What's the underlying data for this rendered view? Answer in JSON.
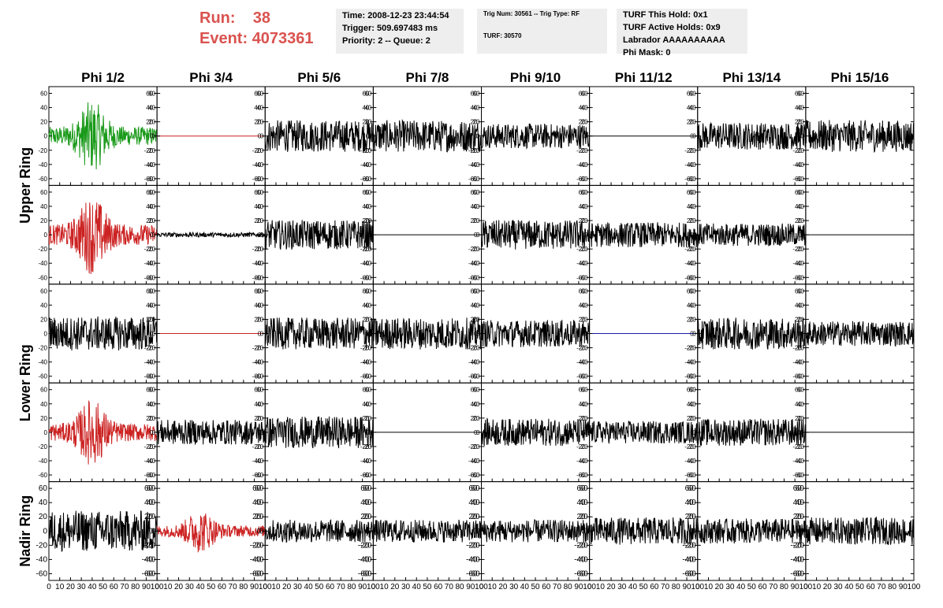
{
  "header": {
    "run_label": "Run:",
    "run_value": "38",
    "event_label": "Event:",
    "event_value": "4073361",
    "time": "Time: 2008-12-23 23:44:54",
    "trigger": "Trigger: 509.697483 ms",
    "priority": "Priority: 2 -- Queue: 2",
    "trig_num": "Trig Num: 30561 -- Trig Type: RF",
    "turf": "TURF: 30570",
    "turf_this_hold": "TURF This Hold: 0x1",
    "turf_active_holds": "TURF Active Holds: 0x9",
    "labrador": "Labrador AAAAAAAAAA",
    "phi_mask": "Phi Mask: 0"
  },
  "chart_data": {
    "type": "line",
    "grid": "8 columns x 5 rows of waveform panels",
    "columns": [
      "Phi 1/2",
      "Phi 3/4",
      "Phi 5/6",
      "Phi 7/8",
      "Phi 9/10",
      "Phi 11/12",
      "Phi 13/14",
      "Phi 15/16"
    ],
    "row_groups": [
      {
        "label": "Upper Ring",
        "rows": [
          0,
          1
        ]
      },
      {
        "label": "Lower Ring",
        "rows": [
          2,
          3
        ]
      },
      {
        "label": "Nadir Ring",
        "rows": [
          4
        ]
      }
    ],
    "xlim": [
      0,
      100
    ],
    "ylim": [
      -65,
      65
    ],
    "x_ticks": [
      0,
      10,
      20,
      30,
      40,
      50,
      60,
      70,
      80,
      90,
      100
    ],
    "x_tick_labels": [
      "0",
      "10",
      "20",
      "30",
      "40",
      "50",
      "60",
      "70",
      "80",
      "90",
      "100"
    ],
    "y_ticks": [
      -60,
      -40,
      -20,
      0,
      20,
      40,
      60
    ],
    "y_tick_labels": [
      "-60",
      "-40",
      "-20",
      "0",
      "20",
      "40",
      "60"
    ],
    "colors": {
      "green": "#1a9a1a",
      "red": "#cc2222",
      "blue": "#1a1aaa",
      "black": "#000000"
    },
    "panels": [
      [
        {
          "c": "green",
          "a": 18,
          "s": "burst"
        },
        {
          "c": "red",
          "a": 0,
          "s": "flat"
        },
        {
          "c": "black",
          "a": 14,
          "s": "noise"
        },
        {
          "c": "black",
          "a": 14,
          "s": "noise"
        },
        {
          "c": "black",
          "a": 11,
          "s": "noise"
        },
        {
          "c": "black",
          "a": 0,
          "s": "flat"
        },
        {
          "c": "black",
          "a": 12,
          "s": "noise"
        },
        {
          "c": "black",
          "a": 14,
          "s": "noise"
        }
      ],
      [
        {
          "c": "red",
          "a": 20,
          "s": "burst"
        },
        {
          "c": "black",
          "a": 2,
          "s": "noise"
        },
        {
          "c": "black",
          "a": 13,
          "s": "noise"
        },
        {
          "c": "black",
          "a": 0,
          "s": "flat"
        },
        {
          "c": "black",
          "a": 13,
          "s": "noise"
        },
        {
          "c": "black",
          "a": 11,
          "s": "noise"
        },
        {
          "c": "black",
          "a": 10,
          "s": "noise"
        },
        {
          "c": "black",
          "a": 0,
          "s": "flat"
        }
      ],
      [
        {
          "c": "black",
          "a": 15,
          "s": "noise"
        },
        {
          "c": "red",
          "a": 0,
          "s": "flat"
        },
        {
          "c": "black",
          "a": 14,
          "s": "noise"
        },
        {
          "c": "black",
          "a": 14,
          "s": "noise"
        },
        {
          "c": "black",
          "a": 12,
          "s": "noise"
        },
        {
          "c": "blue",
          "a": 0,
          "s": "flat"
        },
        {
          "c": "black",
          "a": 14,
          "s": "noise"
        },
        {
          "c": "black",
          "a": 11,
          "s": "noise"
        }
      ],
      [
        {
          "c": "red",
          "a": 17,
          "s": "burst"
        },
        {
          "c": "black",
          "a": 11,
          "s": "noise"
        },
        {
          "c": "black",
          "a": 14,
          "s": "noise"
        },
        {
          "c": "black",
          "a": 0,
          "s": "flat"
        },
        {
          "c": "black",
          "a": 12,
          "s": "noise"
        },
        {
          "c": "black",
          "a": 10,
          "s": "noise"
        },
        {
          "c": "black",
          "a": 12,
          "s": "noise"
        },
        {
          "c": "black",
          "a": 0,
          "s": "flat"
        }
      ],
      [
        {
          "c": "black",
          "a": 18,
          "s": "noise"
        },
        {
          "c": "red",
          "a": 11,
          "s": "burst"
        },
        {
          "c": "black",
          "a": 10,
          "s": "noise"
        },
        {
          "c": "black",
          "a": 10,
          "s": "noise"
        },
        {
          "c": "black",
          "a": 10,
          "s": "noise"
        },
        {
          "c": "black",
          "a": 12,
          "s": "noise"
        },
        {
          "c": "black",
          "a": 11,
          "s": "noise"
        },
        {
          "c": "black",
          "a": 12,
          "s": "noise"
        }
      ]
    ]
  }
}
